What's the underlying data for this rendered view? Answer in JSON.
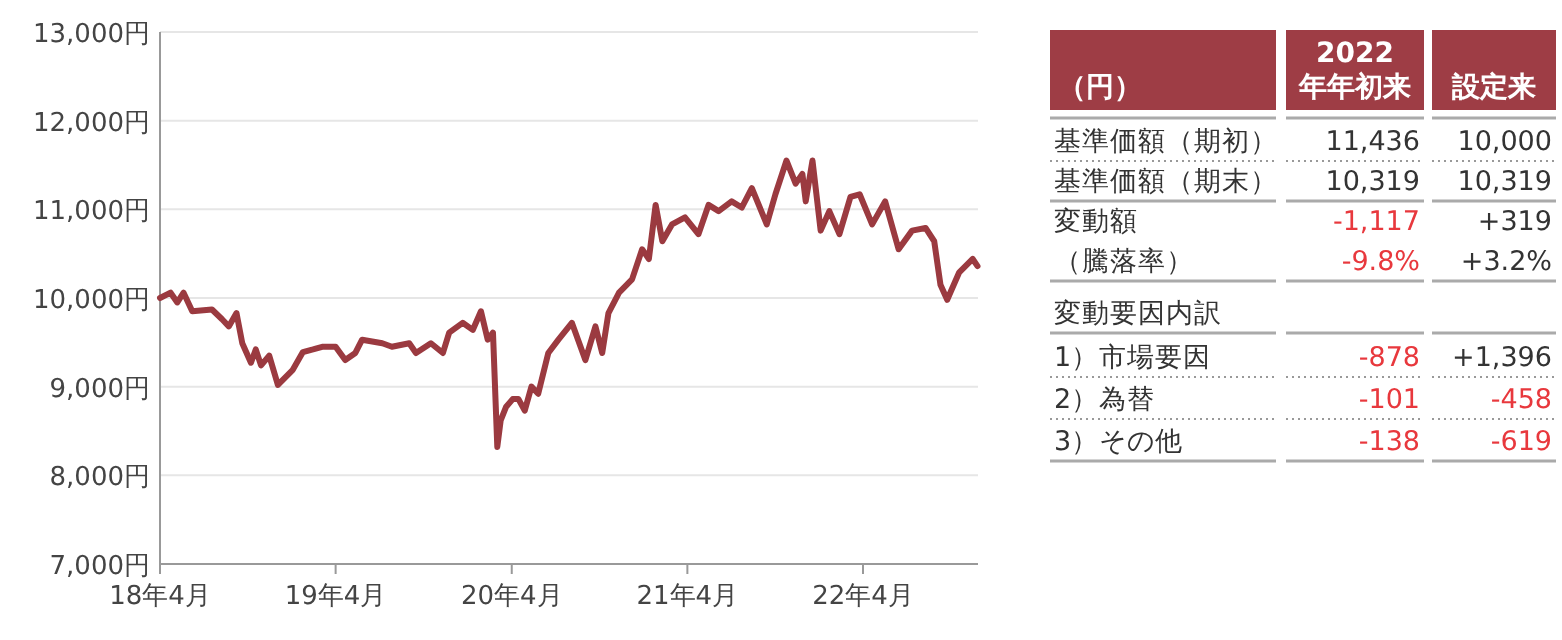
{
  "chart_data": [
    {
      "type": "line",
      "grid": "y",
      "xlim": [
        "2018-04-01",
        "2022-11-26"
      ],
      "xticks": [
        {
          "value": "2018-04-01",
          "label": "18年4月"
        },
        {
          "value": "2019-04-01",
          "label": "19年4月"
        },
        {
          "value": "2020-04-01",
          "label": "20年4月"
        },
        {
          "value": "2021-04-01",
          "label": "21年4月"
        },
        {
          "value": "2022-04-01",
          "label": "22年4月"
        }
      ],
      "ylim": [
        7000,
        13000
      ],
      "yticks": [
        {
          "value": 7000,
          "label": "7,000円"
        },
        {
          "value": 8000,
          "label": "8,000円"
        },
        {
          "value": 9000,
          "label": "9,000円"
        },
        {
          "value": 10000,
          "label": "10,000円"
        },
        {
          "value": 11000,
          "label": "11,000円"
        },
        {
          "value": 12000,
          "label": "12,000円"
        },
        {
          "value": 13000,
          "label": "13,000円"
        }
      ],
      "x": [
        "2018-04-01",
        "2018-04-23",
        "2018-05-07",
        "2018-05-20",
        "2018-06-07",
        "2018-07-18",
        "2018-08-08",
        "2018-08-22",
        "2018-09-07",
        "2018-09-19",
        "2018-10-07",
        "2018-10-17",
        "2018-10-28",
        "2018-11-14",
        "2018-12-02",
        "2019-01-02",
        "2019-01-23",
        "2019-02-13",
        "2019-03-04",
        "2019-04-01",
        "2019-04-21",
        "2019-05-12",
        "2019-05-26",
        "2019-07-07",
        "2019-07-27",
        "2019-09-01",
        "2019-09-15",
        "2019-10-16",
        "2019-11-10",
        "2019-11-23",
        "2019-12-21",
        "2020-01-11",
        "2020-01-28",
        "2020-02-11",
        "2020-02-22",
        "2020-03-02",
        "2020-03-09",
        "2020-03-20",
        "2020-04-03",
        "2020-04-15",
        "2020-04-28",
        "2020-05-12",
        "2020-05-26",
        "2020-06-16",
        "2020-07-07",
        "2020-08-04",
        "2020-09-01",
        "2020-09-22",
        "2020-10-06",
        "2020-10-19",
        "2020-11-10",
        "2020-12-07",
        "2020-12-28",
        "2021-01-11",
        "2021-01-25",
        "2021-02-08",
        "2021-02-28",
        "2021-03-27",
        "2021-04-24",
        "2021-05-15",
        "2021-06-05",
        "2021-07-02",
        "2021-07-23",
        "2021-08-13",
        "2021-09-13",
        "2021-10-01",
        "2021-10-24",
        "2021-11-12",
        "2021-11-26",
        "2021-12-03",
        "2021-12-17",
        "2022-01-03",
        "2022-01-21",
        "2022-02-11",
        "2022-03-06",
        "2022-03-25",
        "2022-04-20",
        "2022-05-17",
        "2022-06-14",
        "2022-07-12",
        "2022-08-09",
        "2022-08-27",
        "2022-09-09",
        "2022-09-23",
        "2022-10-18",
        "2022-11-15",
        "2022-11-25"
      ],
      "series": [
        {
          "color": "#9b3a40",
          "values": [
            10000,
            10060,
            9950,
            10060,
            9850,
            9870,
            9760,
            9680,
            9830,
            9490,
            9270,
            9420,
            9240,
            9350,
            9020,
            9190,
            9390,
            9420,
            9450,
            9450,
            9300,
            9380,
            9530,
            9490,
            9450,
            9490,
            9380,
            9490,
            9380,
            9610,
            9720,
            9640,
            9850,
            9530,
            9610,
            8320,
            8620,
            8770,
            8860,
            8860,
            8730,
            9000,
            8920,
            9380,
            9530,
            9720,
            9300,
            9680,
            9380,
            9830,
            10060,
            10210,
            10550,
            10440,
            11050,
            10640,
            10830,
            10910,
            10720,
            11050,
            10980,
            11090,
            11020,
            11240,
            10830,
            11170,
            11550,
            11290,
            11400,
            11090,
            11550,
            10760,
            10980,
            10720,
            11140,
            11170,
            10830,
            11090,
            10550,
            10760,
            10790,
            10640,
            10150,
            9980,
            10290,
            10440,
            10360
          ]
        }
      ]
    },
    {
      "type": "other",
      "categories": [
        "（円）",
        "2022年年初来",
        "設定来"
      ],
      "y_categories": [
        "基準価額（期初）",
        "基準価額（期末）",
        "変動額",
        "（騰落率）",
        "変動要因内訳",
        "1）市場要因",
        "2）為替",
        "3）その他"
      ],
      "cell_labels": [
        [
          "11,436",
          "10,000"
        ],
        [
          "10,319",
          "10,319"
        ],
        [
          "-1,117",
          "+319"
        ],
        [
          "-9.8%",
          "+3.2%"
        ],
        [
          null,
          null
        ],
        [
          "-878",
          "+1,396"
        ],
        [
          "-101",
          "-458"
        ],
        [
          "-138",
          "-619"
        ]
      ]
    }
  ]
}
